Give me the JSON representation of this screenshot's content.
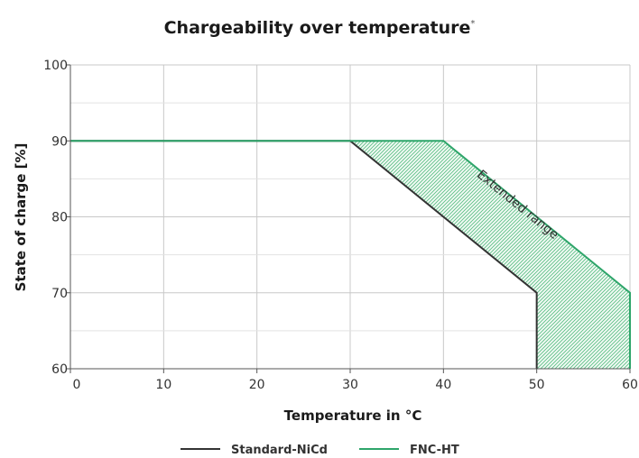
{
  "chart_data": {
    "type": "line",
    "title": "Chargeability over temperature",
    "title_mark": "*",
    "xlabel": "Temperature in °C",
    "ylabel": "State of charge [%]",
    "xlim": [
      0,
      60
    ],
    "ylim": [
      60,
      100
    ],
    "x_ticks": [
      0,
      10,
      20,
      30,
      40,
      50,
      60
    ],
    "y_ticks": [
      60,
      70,
      80,
      90,
      100
    ],
    "grid": true,
    "legend_position": "bottom-center",
    "series": [
      {
        "name": "Standard-NiCd",
        "color": "#333333",
        "points": [
          [
            0,
            90
          ],
          [
            30,
            90
          ],
          [
            50,
            70
          ],
          [
            50,
            60
          ]
        ]
      },
      {
        "name": "FNC-HT",
        "color": "#2ea56a",
        "points": [
          [
            0,
            90
          ],
          [
            40,
            90
          ],
          [
            60,
            70
          ],
          [
            60,
            60
          ]
        ]
      }
    ],
    "shaded_region": {
      "label": "Extended range",
      "color": "#2ea56a",
      "pattern": "hatched"
    }
  }
}
